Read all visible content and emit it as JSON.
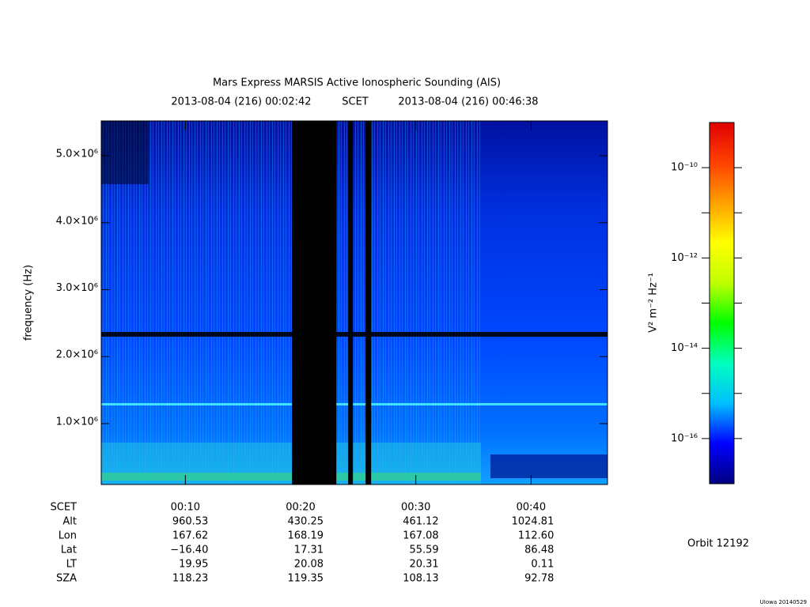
{
  "chart_data": {
    "type": "spectrogram",
    "title": "Mars Express MARSIS Active Ionospheric Sounding (AIS)",
    "start_time": "2013-08-04 (216) 00:02:42",
    "time_system": "SCET",
    "end_time": "2013-08-04 (216) 00:46:38",
    "ylabel": "frequency (Hz)",
    "xlim": [
      2.7,
      46.633
    ],
    "xticks": [
      {
        "value": 10,
        "label": "00:10"
      },
      {
        "value": 20,
        "label": "00:20"
      },
      {
        "value": 30,
        "label": "00:30"
      },
      {
        "value": 40,
        "label": "00:40"
      }
    ],
    "ylim": [
      90000,
      5520000
    ],
    "yticks": [
      {
        "value": 1000000,
        "label": "1.0×10⁶"
      },
      {
        "value": 2000000,
        "label": "2.0×10⁶"
      },
      {
        "value": 3000000,
        "label": "3.0×10⁶"
      },
      {
        "value": 4000000,
        "label": "4.0×10⁶"
      },
      {
        "value": 5000000,
        "label": "5.0×10⁶"
      }
    ],
    "gap_color": "#000000",
    "data_gaps": [
      [
        19.25,
        23.1
      ],
      [
        24.13,
        24.54
      ],
      [
        25.64,
        26.12
      ]
    ],
    "colorbar": {
      "log": true,
      "label": "V² m⁻² Hz⁻¹",
      "lim": [
        1e-17,
        1e-09
      ],
      "colors": [
        "#00007f",
        "#0000ff",
        "#00bfff",
        "#00ffbf",
        "#00ff00",
        "#bfff00",
        "#ffff00",
        "#ffa000",
        "#ff4000",
        "#e00000"
      ],
      "ticks": [
        {
          "value": 1e-10,
          "label": "10⁻¹⁰"
        },
        {
          "value": 1e-12,
          "label": "10⁻¹²"
        },
        {
          "value": 1e-14,
          "label": "10⁻¹⁴"
        },
        {
          "value": 1e-16,
          "label": "10⁻¹⁶"
        }
      ],
      "minor_ticks": [
        1e-11,
        1e-13,
        1e-15
      ]
    },
    "xtick_row_label": "SCET",
    "ephemeris": [
      {
        "label": "Alt",
        "values": [
          "960.53",
          "430.25",
          "461.12",
          "1024.81"
        ]
      },
      {
        "label": "Lon",
        "values": [
          "167.62",
          "168.19",
          "167.08",
          "112.60"
        ]
      },
      {
        "label": "Lat",
        "values": [
          "−16.40",
          "17.31",
          "55.59",
          "86.48"
        ]
      },
      {
        "label": "LT",
        "values": [
          "19.95",
          "20.08",
          "20.31",
          "0.11"
        ]
      },
      {
        "label": "SZA",
        "values": [
          "118.23",
          "119.35",
          "108.13",
          "92.78"
        ]
      }
    ],
    "orbit": "Orbit 12192",
    "credit": "UIowa 20140529"
  }
}
